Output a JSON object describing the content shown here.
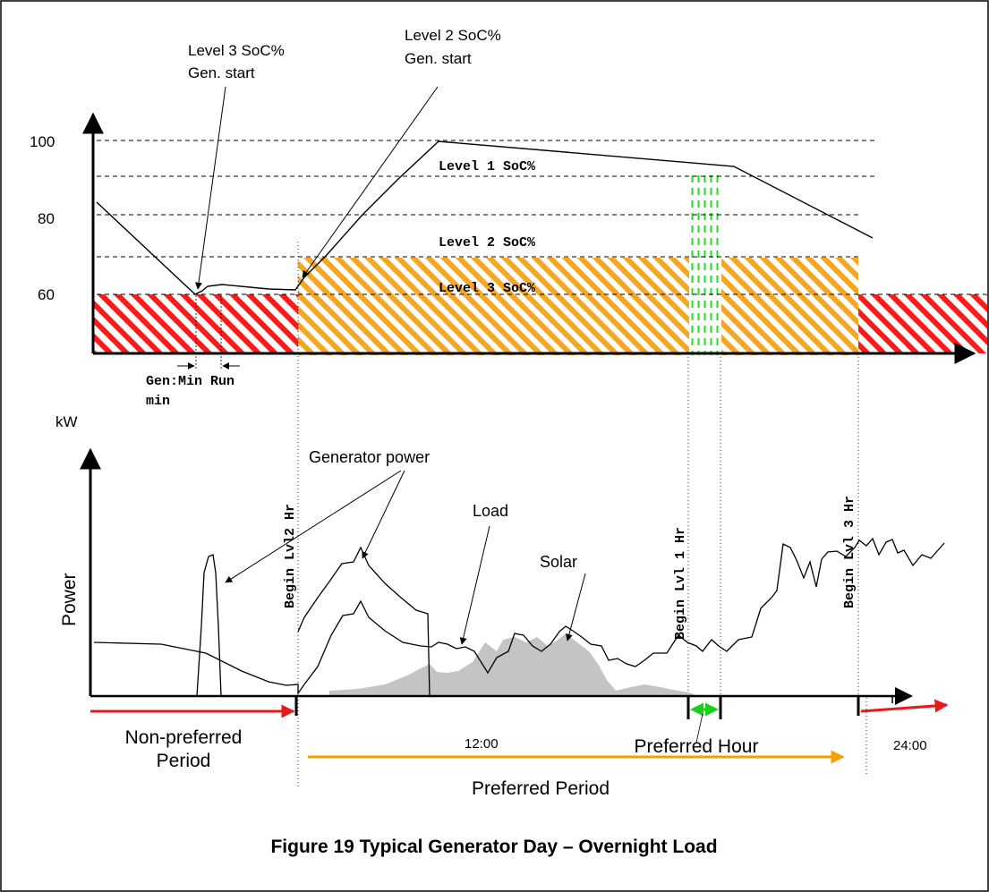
{
  "figure": {
    "caption": "Figure 19 Typical Generator Day – Overnight Load"
  },
  "soc_chart": {
    "tick_labels": [
      "100",
      "80",
      "60"
    ],
    "level_labels": [
      "Level 1 SoC%",
      "Level 2 SoC%",
      "Level 3 SoC%"
    ],
    "callout_level3": [
      "Level 3 SoC%",
      "Gen. start"
    ],
    "callout_level2": [
      "Level 2 SoC%",
      "Gen. start"
    ],
    "min_run_label": [
      "Gen:Min Run",
      "min"
    ]
  },
  "power_chart": {
    "y_unit": "kW",
    "y_label": "Power",
    "generator_label": "Generator power",
    "load_label": "Load",
    "solar_label": "Solar",
    "begin_lvl2": "Begin Lvl2 Hr",
    "begin_lvl1": "Begin Lvl 1 Hr",
    "begin_lvl3": "Begin Lvl 3 Hr",
    "time_noon": "12:00",
    "time_midnight": "24:00"
  },
  "periods": {
    "non_preferred": [
      "Non-preferred",
      "Period"
    ],
    "preferred_hour": "Preferred Hour",
    "preferred": "Preferred Period"
  },
  "colors": {
    "red_hatch": "#ff1a1a",
    "orange_hatch": "#f5a623",
    "green_hatch": "#22dd22",
    "solar": "#c4c4c4",
    "arrow_red": "#e8191b",
    "arrow_orange": "#f5a000",
    "arrow_green": "#18d018"
  }
}
